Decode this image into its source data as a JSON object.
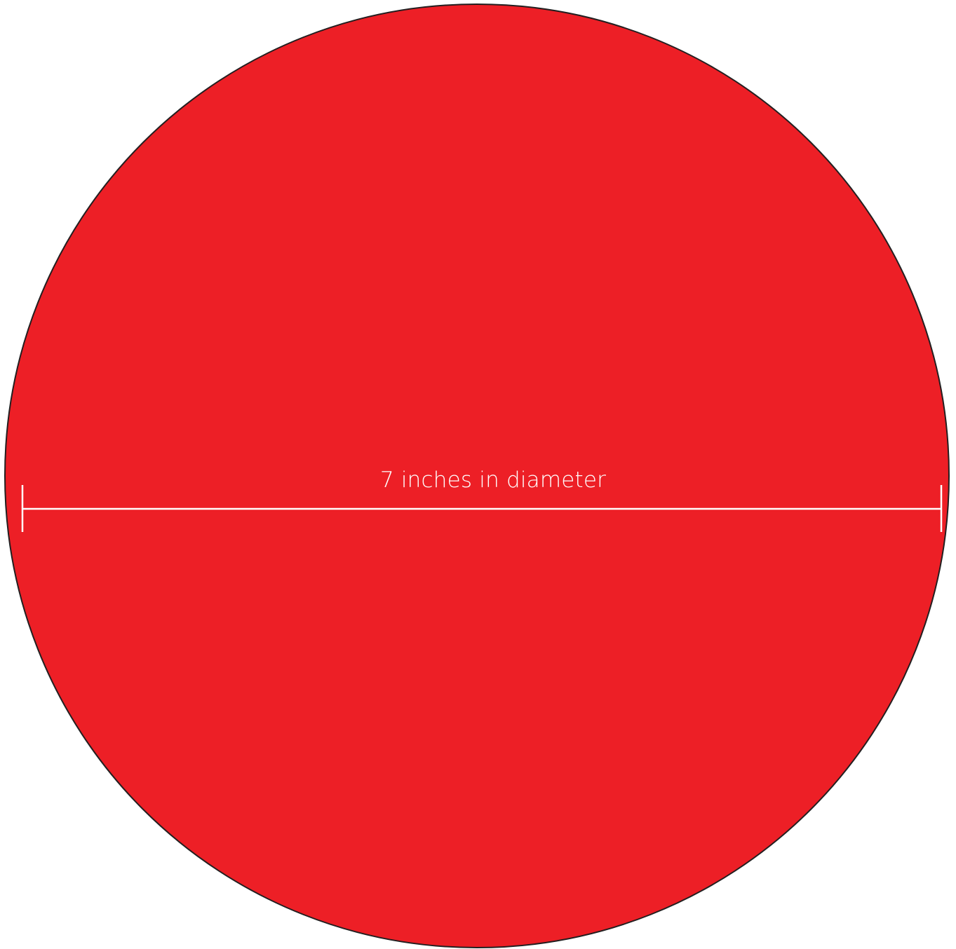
{
  "diagram": {
    "measurement_label": "7 inches in diameter"
  },
  "colors": {
    "circle_fill": "#ED1F26",
    "circle_outline": "#231F20",
    "measure_line": "#FFFFFF",
    "label_text": "#FFFFFF"
  }
}
